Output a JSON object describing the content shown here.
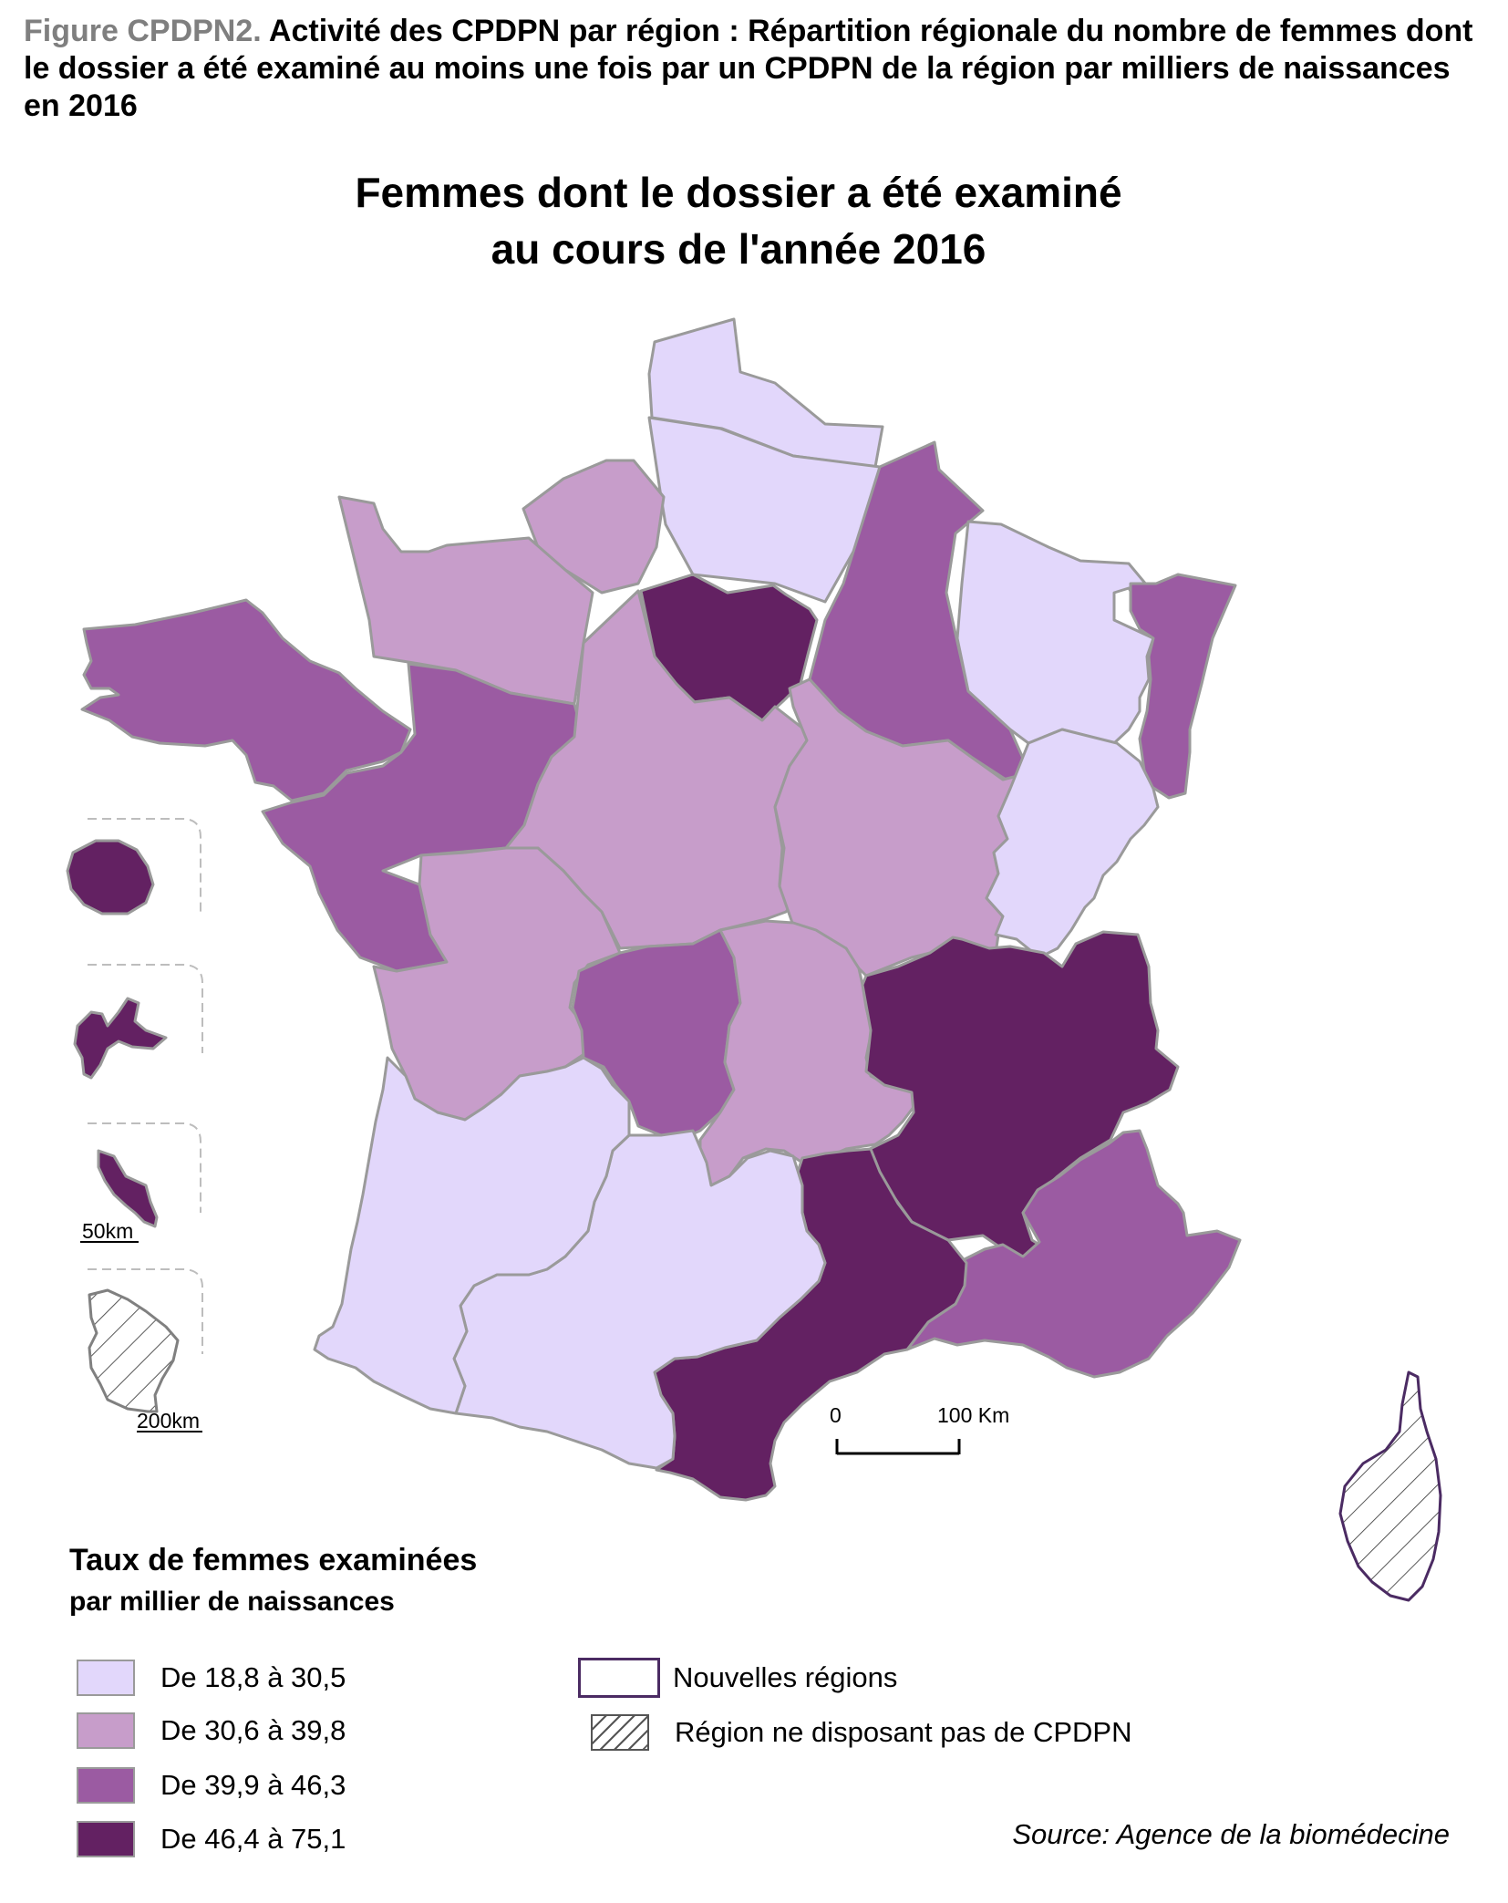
{
  "caption": {
    "prefix": "Figure CPDPN2.",
    "text": "Activité des CPDPN par région : Répartition régionale du nombre de femmes dont le dossier a été examiné au moins une fois par un CPDPN de la région par milliers de naissances en 2016"
  },
  "map_title": {
    "line1": "Femmes dont le dossier a été examiné",
    "line2": "au cours de l'année 2016"
  },
  "scale_bar": {
    "start": "0",
    "end": "100 Km"
  },
  "drom_scales": {
    "small": "50km",
    "large": "200km"
  },
  "classes": {
    "c1": {
      "label": "De 18,8 à 30,5",
      "color": "#e2d7fb"
    },
    "c2": {
      "label": "De 30,6 à 39,8",
      "color": "#c79dca"
    },
    "c3": {
      "label": "De 39,9 à 46,3",
      "color": "#9b5ba2"
    },
    "c4": {
      "label": "De 46,4 à 75,1",
      "color": "#632162"
    }
  },
  "legend": {
    "title": "Taux de femmes examinées",
    "subtitle": "par millier de naissances",
    "new_regions_label": "Nouvelles régions",
    "no_cpdpn_label": "Région ne disposant pas de CPDPN"
  },
  "source": "Source: Agence de la biomédecine"
}
